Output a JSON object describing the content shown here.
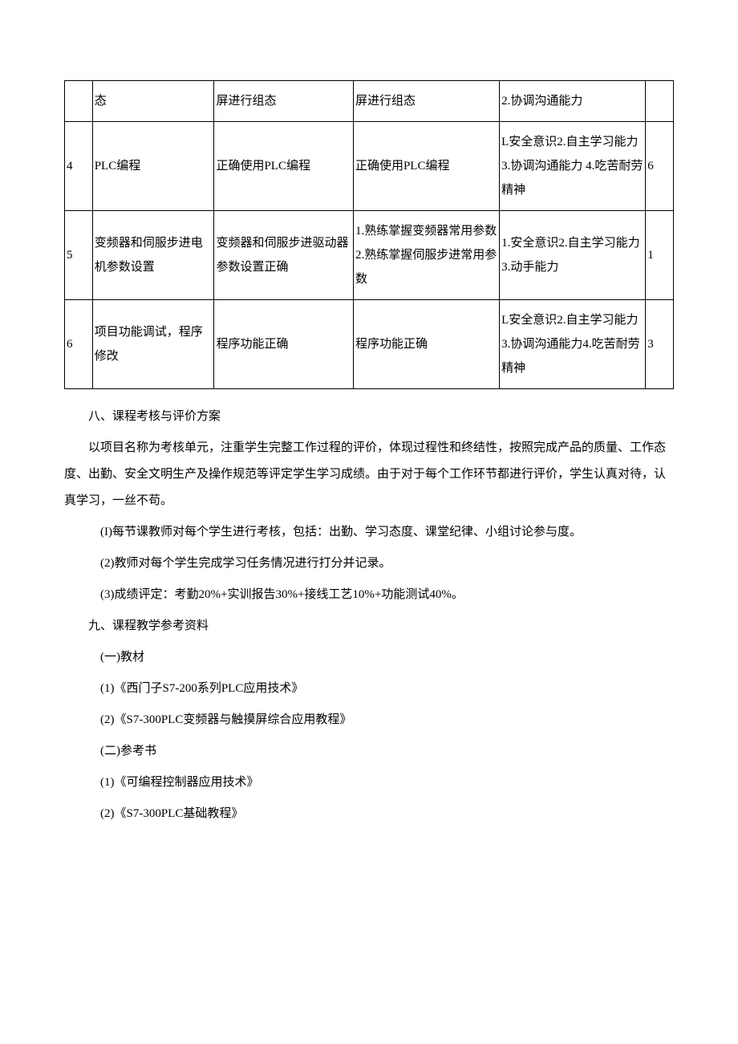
{
  "table": {
    "columns": {
      "idx_width": "4%",
      "a_width": "17.5%",
      "b_width": "20%",
      "c_width": "21%",
      "d_width": "21%",
      "e_width": "4%"
    },
    "border_color": "#000000",
    "cell_fontsize": 15,
    "cell_lineheight": 2.0,
    "rows": [
      {
        "idx": "",
        "a": "态",
        "b": "屏进行组态",
        "c": "屏进行组态",
        "d": "2.协调沟通能力",
        "e": ""
      },
      {
        "idx": "4",
        "a": "PLC编程",
        "b": "正确使用PLC编程",
        "c": "正确使用PLC编程",
        "d": "L安全意识2.自主学习能力\n3.协调沟通能力\n4.吃苦耐劳精神",
        "e": "6"
      },
      {
        "idx": "5",
        "a": "变频器和伺服步进电机参数设置",
        "b": "变频器和伺服步进驱动器参数设置正确",
        "c": "1.熟练掌握变频器常用参数2.熟练掌握伺服步进常用参数",
        "d": "1.安全意识2.自主学习能力3.动手能力",
        "e": "1"
      },
      {
        "idx": "6",
        "a": "项目功能调试，程序修改",
        "b": "程序功能正确",
        "c": "程序功能正确",
        "d": "L安全意识2.自主学习能力3.协调沟通能力4.吃苦耐劳精神",
        "e": "3"
      }
    ]
  },
  "section8": {
    "title": "八、课程考核与评价方案",
    "p1": "以项目名称为考核单元，注重学生完整工作过程的评价，体现过程性和终结性，按照完成产品的质量、工作态度、出勤、安全文明生产及操作规范等评定学生学习成绩。由于对于每个工作环节都进行评价，学生认真对待，认真学习，一丝不苟。",
    "items": [
      "(I)每节课教师对每个学生进行考核，包括：出勤、学习态度、课堂纪律、小组讨论参与度。",
      "(2)教师对每个学生完成学习任务情况进行打分并记录。",
      "(3)成绩评定：考勤20%+实训报告30%+接线工艺10%+功能测试40%。"
    ]
  },
  "section9": {
    "title": "九、课程教学参考资料",
    "groups": [
      {
        "label": "(一)教材",
        "items": [
          "(1)《西门子S7-200系列PLC应用技术》",
          "(2)《S7-300PLC变频器与触摸屏综合应用教程》"
        ]
      },
      {
        "label": "(二)参考书",
        "items": [
          "(1)《可编程控制器应用技术》",
          "(2)《S7-300PLC基础教程》"
        ]
      }
    ]
  },
  "typography": {
    "body_font": "SimSun",
    "body_fontsize": 15,
    "body_lineheight": 2.2,
    "text_indent_em": 2,
    "background_color": "#ffffff",
    "text_color": "#000000"
  }
}
